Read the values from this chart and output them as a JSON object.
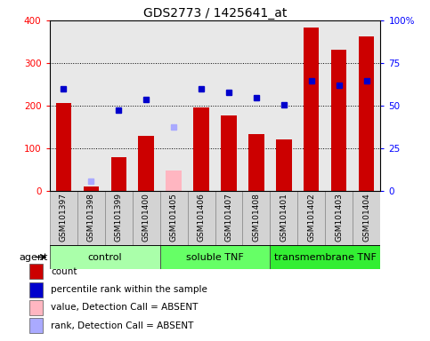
{
  "title": "GDS2773 / 1425641_at",
  "samples": [
    "GSM101397",
    "GSM101398",
    "GSM101399",
    "GSM101400",
    "GSM101405",
    "GSM101406",
    "GSM101407",
    "GSM101408",
    "GSM101401",
    "GSM101402",
    "GSM101403",
    "GSM101404"
  ],
  "bar_values": [
    207,
    10,
    80,
    130,
    null,
    195,
    178,
    133,
    120,
    383,
    332,
    363
  ],
  "bar_absent_values": [
    null,
    null,
    null,
    null,
    47,
    null,
    null,
    null,
    null,
    null,
    null,
    null
  ],
  "rank_values": [
    240,
    null,
    190,
    215,
    null,
    240,
    232,
    218,
    202,
    258,
    247,
    258
  ],
  "rank_absent_values": [
    null,
    22,
    null,
    null,
    150,
    null,
    null,
    null,
    null,
    null,
    null,
    null
  ],
  "bar_color": "#CC0000",
  "bar_absent_color": "#FFB6C1",
  "rank_color": "#0000CC",
  "rank_absent_color": "#AAAAFF",
  "ylim_left": [
    0,
    400
  ],
  "ylim_right": [
    0,
    100
  ],
  "yticks_left": [
    0,
    100,
    200,
    300,
    400
  ],
  "yticks_right": [
    0,
    25,
    50,
    75,
    100
  ],
  "yticklabels_right": [
    "0",
    "25",
    "50",
    "75",
    "100%"
  ],
  "groups": [
    {
      "label": "control",
      "start": 0,
      "end": 4,
      "color": "#AAFFAA"
    },
    {
      "label": "soluble TNF",
      "start": 4,
      "end": 8,
      "color": "#66FF66"
    },
    {
      "label": "transmembrane TNF",
      "start": 8,
      "end": 12,
      "color": "#33EE33"
    }
  ],
  "agent_label": "agent",
  "legend_items": [
    {
      "label": "count",
      "color": "#CC0000"
    },
    {
      "label": "percentile rank within the sample",
      "color": "#0000CC"
    },
    {
      "label": "value, Detection Call = ABSENT",
      "color": "#FFB6C1"
    },
    {
      "label": "rank, Detection Call = ABSENT",
      "color": "#AAAAFF"
    }
  ],
  "bar_width": 0.55,
  "plot_bg_color": "#E8E8E8",
  "fig_bg_color": "#FFFFFF",
  "title_fontsize": 10,
  "tick_fontsize": 6.5,
  "label_fontsize": 8,
  "group_label_fontsize": 8,
  "legend_fontsize": 7.5
}
